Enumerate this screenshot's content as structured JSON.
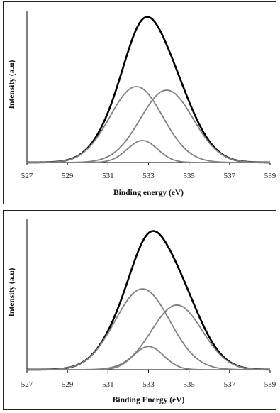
{
  "chart_data": [
    {
      "type": "line",
      "title": "",
      "xlabel": "Binding energy (eV)",
      "ylabel": "Intensity (a.u)",
      "xlim": [
        527,
        539
      ],
      "ylim": [
        0,
        1.05
      ],
      "xticks": [
        "527",
        "529",
        "531",
        "533",
        "535",
        "537",
        "539"
      ],
      "grid": false,
      "legend": "none",
      "series": [
        {
          "role": "envelope",
          "color": "#000000",
          "peaks": [
            {
              "center": 532.4,
              "height": 0.535,
              "sigma": 1.3
            },
            {
              "center": 533.9,
              "height": 0.51,
              "sigma": 1.3
            },
            {
              "center": 532.7,
              "height": 0.155,
              "sigma": 0.75
            }
          ]
        },
        {
          "role": "component",
          "color": "#808080",
          "peaks": [
            {
              "center": 532.4,
              "height": 0.535,
              "sigma": 1.3
            }
          ]
        },
        {
          "role": "component",
          "color": "#808080",
          "peaks": [
            {
              "center": 533.9,
              "height": 0.51,
              "sigma": 1.3
            }
          ]
        },
        {
          "role": "component",
          "color": "#808080",
          "peaks": [
            {
              "center": 532.7,
              "height": 0.155,
              "sigma": 0.75
            }
          ]
        }
      ]
    },
    {
      "type": "line",
      "title": "",
      "xlabel": "Binding Energy (eV)",
      "ylabel": "Intensity (a.u)",
      "xlim": [
        527,
        539
      ],
      "ylim": [
        0,
        1.05
      ],
      "xticks": [
        "527",
        "529",
        "531",
        "533",
        "535",
        "537",
        "539"
      ],
      "grid": false,
      "legend": "none",
      "series": [
        {
          "role": "envelope",
          "color": "#000000",
          "peaks": [
            {
              "center": 532.7,
              "height": 0.575,
              "sigma": 1.35
            },
            {
              "center": 534.4,
              "height": 0.46,
              "sigma": 1.25
            },
            {
              "center": 533.0,
              "height": 0.165,
              "sigma": 0.75
            }
          ]
        },
        {
          "role": "component",
          "color": "#808080",
          "peaks": [
            {
              "center": 532.7,
              "height": 0.575,
              "sigma": 1.35
            }
          ]
        },
        {
          "role": "component",
          "color": "#808080",
          "peaks": [
            {
              "center": 534.4,
              "height": 0.46,
              "sigma": 1.25
            }
          ]
        },
        {
          "role": "component",
          "color": "#808080",
          "peaks": [
            {
              "center": 533.0,
              "height": 0.165,
              "sigma": 0.75
            }
          ]
        }
      ]
    }
  ]
}
